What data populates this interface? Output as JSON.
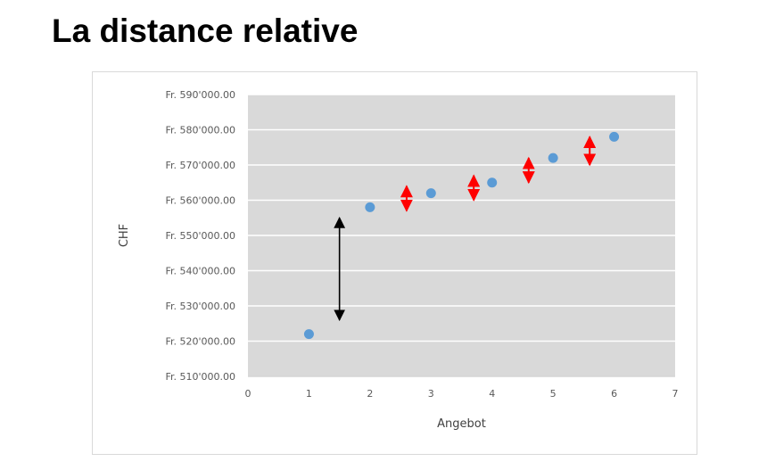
{
  "page": {
    "title": "La distance relative"
  },
  "chart_data": {
    "type": "scatter",
    "title": "",
    "xlabel": "Angebot",
    "ylabel": "CHF",
    "xlim": [
      0,
      7
    ],
    "ylim": [
      510000,
      590000
    ],
    "x_ticks": [
      "0",
      "1",
      "2",
      "3",
      "4",
      "5",
      "6",
      "7"
    ],
    "y_ticks": [
      "Fr. 510'000.00",
      "Fr. 520'000.00",
      "Fr. 530'000.00",
      "Fr. 540'000.00",
      "Fr. 550'000.00",
      "Fr. 560'000.00",
      "Fr. 570'000.00",
      "Fr. 580'000.00",
      "Fr. 590'000.00"
    ],
    "y_tick_values": [
      510000,
      520000,
      530000,
      540000,
      550000,
      560000,
      570000,
      580000,
      590000
    ],
    "grid": true,
    "legend": "none",
    "plot_background": "#d9d9d9",
    "series": [
      {
        "color": "#5b9bd5",
        "x": [
          1,
          2,
          3,
          4,
          5,
          6
        ],
        "y": [
          522000,
          558000,
          562000,
          565000,
          572000,
          578000
        ]
      }
    ],
    "annotations": [
      {
        "type": "double-arrow",
        "color": "#000000",
        "x": 1.5,
        "y_from": 526000,
        "y_to": 555000
      },
      {
        "type": "double-arrow",
        "color": "#ff0000",
        "x": 2.6,
        "y_from": 557000,
        "y_to": 564000
      },
      {
        "type": "double-arrow",
        "color": "#ff0000",
        "x": 3.7,
        "y_from": 560000,
        "y_to": 567000
      },
      {
        "type": "double-arrow",
        "color": "#ff0000",
        "x": 4.6,
        "y_from": 565000,
        "y_to": 572000
      },
      {
        "type": "double-arrow",
        "color": "#ff0000",
        "x": 5.6,
        "y_from": 570000,
        "y_to": 578000
      }
    ]
  }
}
